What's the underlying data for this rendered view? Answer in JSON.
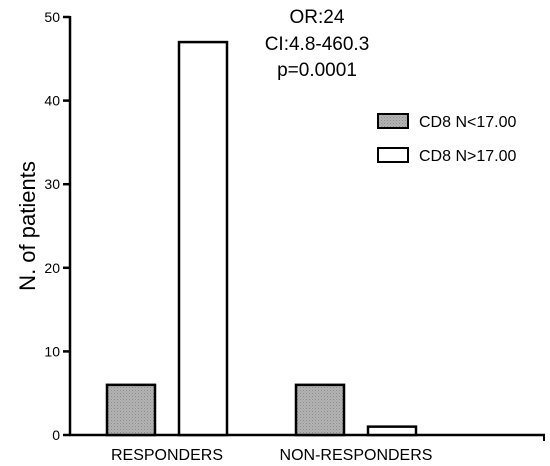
{
  "chart_data": {
    "type": "bar",
    "categories": [
      "RESPONDERS",
      "NON-RESPONDERS"
    ],
    "series": [
      {
        "name": "CD8 N<17.00",
        "values": [
          6,
          6
        ],
        "fill": "#b3b3b3"
      },
      {
        "name": "CD8 N>17.00",
        "values": [
          47,
          1
        ],
        "fill": "#ffffff"
      }
    ],
    "ylabel": "N. of patients",
    "xlabel": "",
    "ylim": [
      0,
      50
    ],
    "yticks": [
      0,
      10,
      20,
      30,
      40,
      50
    ],
    "grid": false,
    "legend_position": "right",
    "annotations": [
      "OR:24",
      "CI:4.8-460.3",
      "p=0.0001"
    ]
  }
}
